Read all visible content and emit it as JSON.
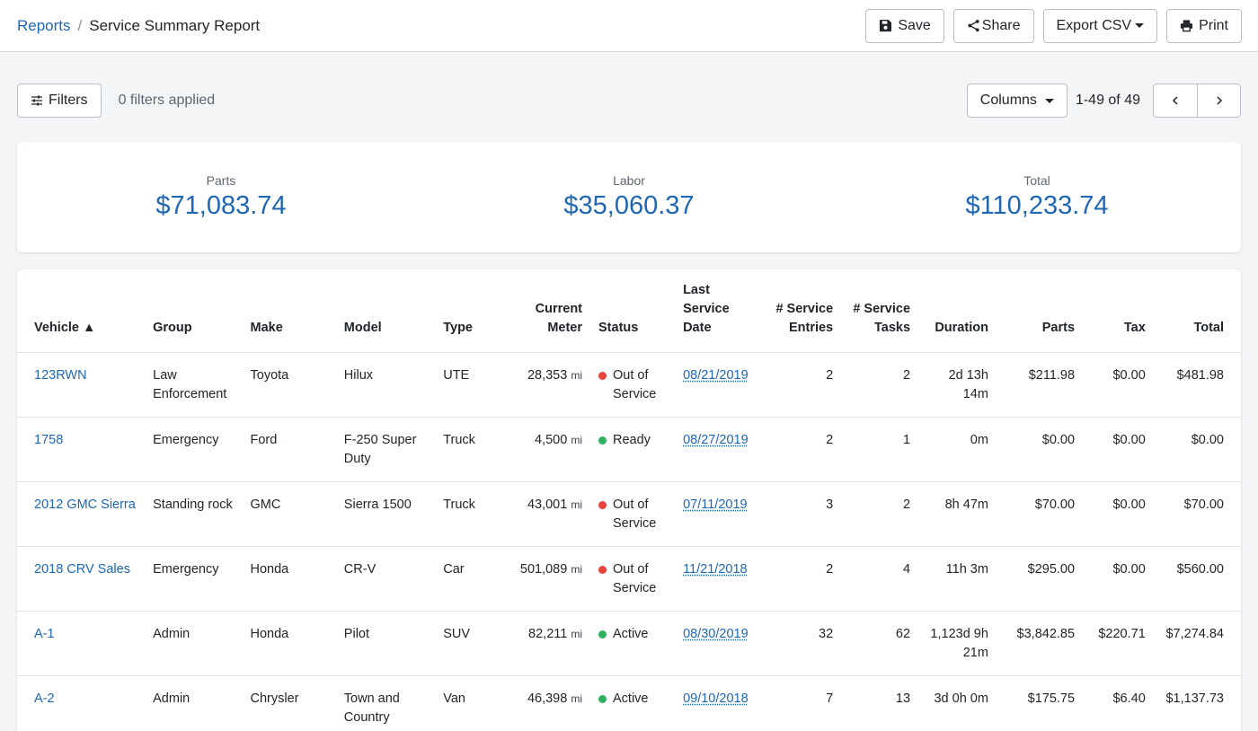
{
  "breadcrumb": {
    "parent": "Reports",
    "separator": "/",
    "current": "Service Summary Report"
  },
  "actions": {
    "save": "Save",
    "share": "Share",
    "export": "Export CSV",
    "print": "Print"
  },
  "toolbar": {
    "filters": "Filters",
    "filters_applied": "0 filters applied",
    "columns": "Columns",
    "range": "1-49 of 49"
  },
  "summary": {
    "parts": {
      "label": "Parts",
      "value": "$71,083.74"
    },
    "labor": {
      "label": "Labor",
      "value": "$35,060.37"
    },
    "total": {
      "label": "Total",
      "value": "$110,233.74"
    }
  },
  "colors": {
    "accent": "#1f66b3",
    "status_red": "#e5433b",
    "status_green": "#2db35f"
  },
  "table": {
    "headers": {
      "vehicle": "Vehicle ▲",
      "group": "Group",
      "make": "Make",
      "model": "Model",
      "type": "Type",
      "meter": "Current Meter",
      "status": "Status",
      "last_date": "Last Service Date",
      "entries": "# Service Entries",
      "tasks": "# Service Tasks",
      "duration": "Duration",
      "parts": "Parts",
      "tax": "Tax",
      "total": "Total"
    },
    "rows": [
      {
        "vehicle": "123RWN",
        "group": "Law Enforcement",
        "make": "Toyota",
        "model": "Hilux",
        "type": "UTE",
        "meter": "28,353",
        "unit": "mi",
        "status": "Out of Service",
        "status_color": "#e5433b",
        "date": "08/21/2019",
        "entries": "2",
        "tasks": "2",
        "duration": "2d 13h 14m",
        "parts": "$211.98",
        "tax": "$0.00",
        "total": "$481.98"
      },
      {
        "vehicle": "1758",
        "group": "Emergency",
        "make": "Ford",
        "model": "F-250 Super Duty",
        "type": "Truck",
        "meter": "4,500",
        "unit": "mi",
        "status": "Ready",
        "status_color": "#2db35f",
        "date": "08/27/2019",
        "entries": "2",
        "tasks": "1",
        "duration": "0m",
        "parts": "$0.00",
        "tax": "$0.00",
        "total": "$0.00"
      },
      {
        "vehicle": "2012 GMC Sierra",
        "group": "Standing rock",
        "make": "GMC",
        "model": "Sierra 1500",
        "type": "Truck",
        "meter": "43,001",
        "unit": "mi",
        "status": "Out of Service",
        "status_color": "#e5433b",
        "date": "07/11/2019",
        "entries": "3",
        "tasks": "2",
        "duration": "8h 47m",
        "parts": "$70.00",
        "tax": "$0.00",
        "total": "$70.00"
      },
      {
        "vehicle": "2018 CRV Sales",
        "group": "Emergency",
        "make": "Honda",
        "model": "CR-V",
        "type": "Car",
        "meter": "501,089",
        "unit": "mi",
        "status": "Out of Service",
        "status_color": "#e5433b",
        "date": "11/21/2018",
        "entries": "2",
        "tasks": "4",
        "duration": "11h 3m",
        "parts": "$295.00",
        "tax": "$0.00",
        "total": "$560.00"
      },
      {
        "vehicle": "A-1",
        "group": "Admin",
        "make": "Honda",
        "model": "Pilot",
        "type": "SUV",
        "meter": "82,211",
        "unit": "mi",
        "status": "Active",
        "status_color": "#2db35f",
        "date": "08/30/2019",
        "entries": "32",
        "tasks": "62",
        "duration": "1,123d 9h 21m",
        "parts": "$3,842.85",
        "tax": "$220.71",
        "total": "$7,274.84"
      },
      {
        "vehicle": "A-2",
        "group": "Admin",
        "make": "Chrysler",
        "model": "Town and Country",
        "type": "Van",
        "meter": "46,398",
        "unit": "mi",
        "status": "Active",
        "status_color": "#2db35f",
        "date": "09/10/2018",
        "entries": "7",
        "tasks": "13",
        "duration": "3d 0h 0m",
        "parts": "$175.75",
        "tax": "$6.40",
        "total": "$1,137.73"
      }
    ]
  }
}
